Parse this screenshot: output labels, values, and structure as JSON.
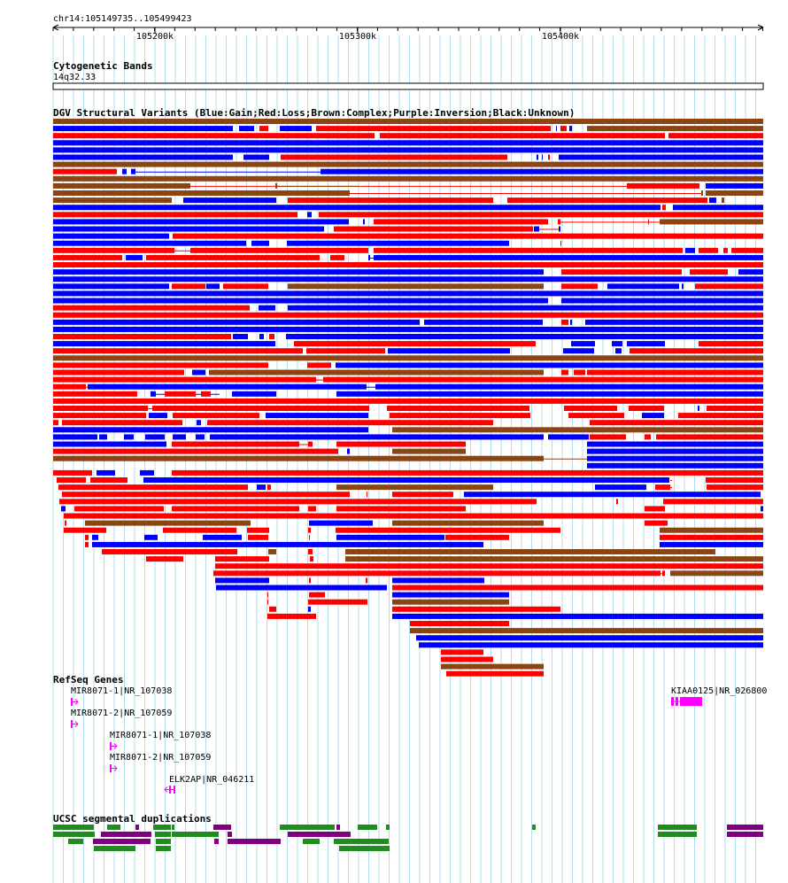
{
  "region": "chr14:105149735..105499423",
  "ruler": {
    "ticks": [
      "105200k",
      "105300k",
      "105400k"
    ]
  },
  "cytoband": {
    "title": "Cytogenetic Bands",
    "band": "14q32.33"
  },
  "dgv": {
    "title": "DGV Structural Variants (Blue:Gain;Red:Loss;Brown:Complex;Purple:Inversion;Black:Unknown)",
    "colors": {
      "gain": "#0000ff",
      "loss": "#ff0000",
      "complex": "#8b4513",
      "inversion": "#800080",
      "unknown": "#000000"
    }
  },
  "refseq": {
    "title": "RefSeq Genes",
    "gene_color": "#ff00ff",
    "genes": [
      {
        "label": "MIR8071-1|NR_107038"
      },
      {
        "label": "MIR8071-2|NR_107059"
      },
      {
        "label": "MIR8071-1|NR_107038"
      },
      {
        "label": "MIR8071-2|NR_107059"
      },
      {
        "label": "ELK2AP|NR_046211"
      },
      {
        "label": "KIAA0125|NR_026800"
      }
    ]
  },
  "segdup": {
    "title": "UCSC segmental duplications",
    "colors": {
      "green": "#228b22",
      "purple": "#800080"
    }
  }
}
